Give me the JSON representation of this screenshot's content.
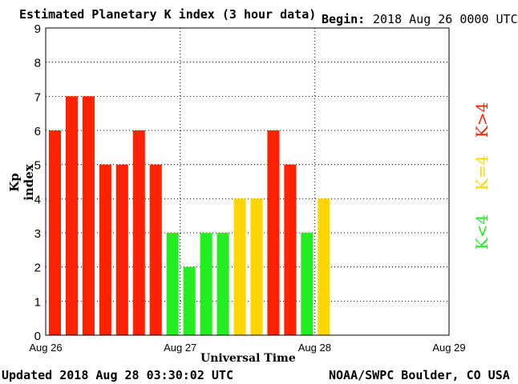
{
  "header": {
    "title": "Estimated Planetary K index (3 hour data)",
    "begin_label": "Begin:",
    "begin_value": "2018 Aug 26 0000 UTC"
  },
  "footer": {
    "updated": "Updated 2018 Aug 28 03:30:02 UTC",
    "source": "NOAA/SWPC Boulder, CO USA"
  },
  "legend": {
    "high": "K>4",
    "equal": "K=4",
    "low": "K<4"
  },
  "colors": {
    "high": "#ff2200",
    "equal": "#ffd700",
    "low": "#22ee22",
    "grid": "#000000"
  },
  "chart_data": {
    "type": "bar",
    "title": "Estimated Planetary K index (3 hour data)",
    "xlabel": "Universal Time",
    "ylabel": "Kp index",
    "ylim": [
      0,
      9
    ],
    "yticks": [
      "0",
      "1",
      "2",
      "3",
      "4",
      "5",
      "6",
      "7",
      "8",
      "9"
    ],
    "xticks": [
      "Aug 26",
      "Aug 27",
      "Aug 28",
      "Aug 29"
    ],
    "slots_total": 24,
    "values": [
      6,
      7,
      7,
      5,
      5,
      6,
      5,
      3,
      2,
      3,
      3,
      4,
      4,
      6,
      5,
      3,
      4
    ],
    "grid": true
  }
}
